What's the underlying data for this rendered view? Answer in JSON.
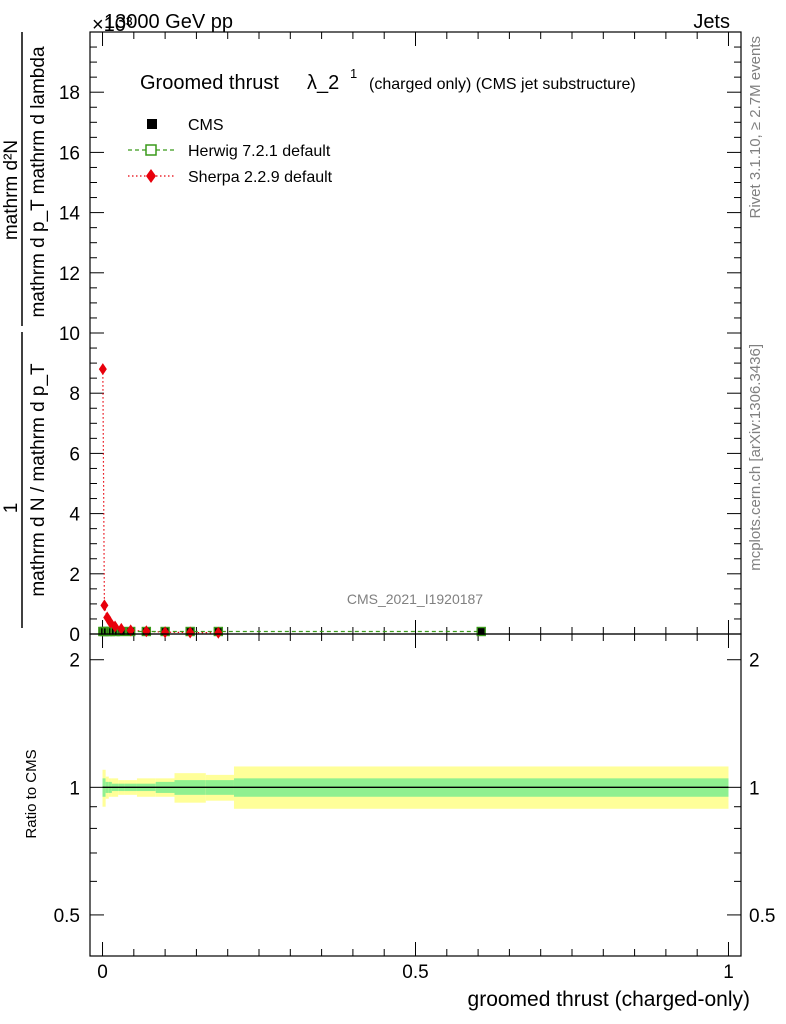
{
  "header": {
    "energy_label": "13000 GeV pp",
    "category_label": "Jets",
    "exponent_label": "×10³"
  },
  "side_labels": {
    "rivet_version": "Rivet 3.1.10, ≥ 2.7M events",
    "source": "mcplots.cern.ch [arXiv:1306.3436]"
  },
  "watermark": "CMS_2021_I1920187",
  "colors": {
    "cms": "#000000",
    "herwig": "#3a9a1a",
    "sherpa": "#e8000b",
    "band_inner": "#90f090",
    "band_outer": "#ffff99"
  },
  "chart_data": [
    {
      "type": "line",
      "title": "Groomed thrust λ_2¹",
      "title_main": "Groomed thrust",
      "title_lambda": "λ_2",
      "title_sup": "1",
      "title_extra": "(charged only) (CMS jet substructure)",
      "ylabel_numerator": "mathrm d²N",
      "ylabel_denominator": "mathrm d p_T mathrm d lambda",
      "ylabel_prefactor_num": "1",
      "ylabel_prefactor_den": "mathrm d N / mathrm d p_T",
      "ylim": [
        0,
        20
      ],
      "xlim": [
        -0.02,
        1.02
      ],
      "y_ticks": [
        0,
        2,
        4,
        6,
        8,
        10,
        12,
        14,
        16,
        18
      ],
      "legend_placement": "top-left",
      "series": [
        {
          "name": "CMS",
          "marker": "square",
          "x": [
            0.0005,
            0.003,
            0.0075,
            0.0125,
            0.02,
            0.03,
            0.045,
            0.07,
            0.1,
            0.14,
            0.185,
            0.605
          ],
          "values": [
            0.05,
            0.05,
            0.05,
            0.05,
            0.05,
            0.05,
            0.05,
            0.05,
            0.05,
            0.05,
            0.05,
            0.05
          ]
        },
        {
          "name": "Herwig 7.2.1 default",
          "marker": "open-square",
          "x": [
            0.0005,
            0.003,
            0.0075,
            0.0125,
            0.02,
            0.03,
            0.045,
            0.07,
            0.1,
            0.14,
            0.185,
            0.605
          ],
          "values": [
            0.05,
            0.05,
            0.05,
            0.05,
            0.05,
            0.05,
            0.05,
            0.05,
            0.05,
            0.05,
            0.05,
            0.05
          ]
        },
        {
          "name": "Sherpa 2.2.9 default",
          "marker": "diamond",
          "x": [
            0.0005,
            0.003,
            0.0075,
            0.0125,
            0.02,
            0.03,
            0.045,
            0.07,
            0.1,
            0.14,
            0.185
          ],
          "values": [
            8.8,
            0.95,
            0.55,
            0.38,
            0.25,
            0.17,
            0.12,
            0.09,
            0.06,
            0.05,
            0.04
          ]
        }
      ]
    },
    {
      "type": "area",
      "ylabel": "Ratio to CMS",
      "xlabel": "groomed thrust (charged-only)",
      "ylim": [
        0.4,
        2.3
      ],
      "xlim": [
        -0.02,
        1.02
      ],
      "y_ticks": [
        0.5,
        1,
        2
      ],
      "x_ticks": [
        0,
        0.5,
        1
      ],
      "bins": [
        0,
        0.005,
        0.01,
        0.015,
        0.025,
        0.035,
        0.055,
        0.085,
        0.115,
        0.165,
        0.21,
        1.0
      ],
      "band_outer": [
        [
          0.9,
          1.1
        ],
        [
          0.94,
          1.06
        ],
        [
          0.95,
          1.05
        ],
        [
          0.95,
          1.05
        ],
        [
          0.96,
          1.04
        ],
        [
          0.96,
          1.04
        ],
        [
          0.95,
          1.05
        ],
        [
          0.95,
          1.05
        ],
        [
          0.92,
          1.08
        ],
        [
          0.93,
          1.07
        ],
        [
          0.89,
          1.12
        ]
      ],
      "band_inner": [
        [
          0.95,
          1.05
        ],
        [
          0.97,
          1.03
        ],
        [
          0.97,
          1.03
        ],
        [
          0.98,
          1.02
        ],
        [
          0.98,
          1.02
        ],
        [
          0.98,
          1.02
        ],
        [
          0.98,
          1.02
        ],
        [
          0.97,
          1.03
        ],
        [
          0.96,
          1.04
        ],
        [
          0.96,
          1.04
        ],
        [
          0.95,
          1.05
        ]
      ],
      "reference": 1
    }
  ]
}
